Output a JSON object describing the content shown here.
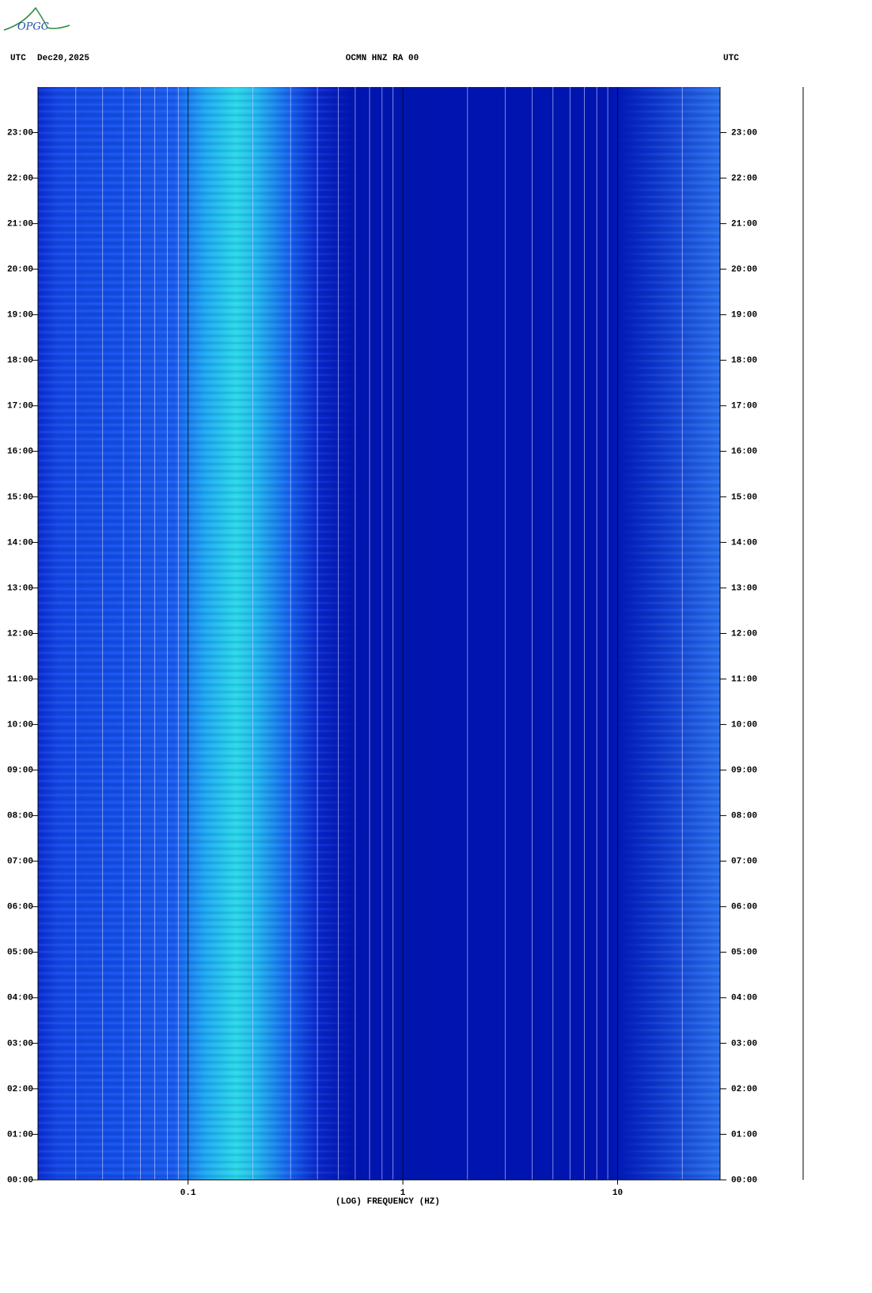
{
  "logo": "OPGC",
  "chart_data": {
    "type": "spectrogram",
    "title": "OCMN HNZ RA 00",
    "date": "Dec20,2025",
    "left_label": "UTC",
    "right_label": "UTC",
    "x_label": "(LOG) FREQUENCY (HZ)",
    "xscale": "log",
    "xlim": [
      0.02,
      30
    ],
    "xticks": [
      0.1,
      1,
      10
    ],
    "xgrid": [
      0.03,
      0.04,
      0.05,
      0.06,
      0.07,
      0.08,
      0.09,
      0.1,
      0.2,
      0.3,
      0.4,
      0.5,
      0.6,
      0.7,
      0.8,
      0.9,
      1,
      2,
      3,
      4,
      5,
      6,
      7,
      8,
      9,
      10,
      20
    ],
    "ylim": [
      0,
      24
    ],
    "yticks": [
      {
        "value": 0,
        "label": "00:00"
      },
      {
        "value": 1,
        "label": "01:00"
      },
      {
        "value": 2,
        "label": "02:00"
      },
      {
        "value": 3,
        "label": "03:00"
      },
      {
        "value": 4,
        "label": "04:00"
      },
      {
        "value": 5,
        "label": "05:00"
      },
      {
        "value": 6,
        "label": "06:00"
      },
      {
        "value": 7,
        "label": "07:00"
      },
      {
        "value": 8,
        "label": "08:00"
      },
      {
        "value": 9,
        "label": "09:00"
      },
      {
        "value": 10,
        "label": "10:00"
      },
      {
        "value": 11,
        "label": "11:00"
      },
      {
        "value": 12,
        "label": "12:00"
      },
      {
        "value": 13,
        "label": "13:00"
      },
      {
        "value": 14,
        "label": "14:00"
      },
      {
        "value": 15,
        "label": "15:00"
      },
      {
        "value": 16,
        "label": "16:00"
      },
      {
        "value": 17,
        "label": "17:00"
      },
      {
        "value": 18,
        "label": "18:00"
      },
      {
        "value": 19,
        "label": "19:00"
      },
      {
        "value": 20,
        "label": "20:00"
      },
      {
        "value": 21,
        "label": "21:00"
      },
      {
        "value": 22,
        "label": "22:00"
      },
      {
        "value": 23,
        "label": "23:00"
      }
    ],
    "grid": true
  }
}
